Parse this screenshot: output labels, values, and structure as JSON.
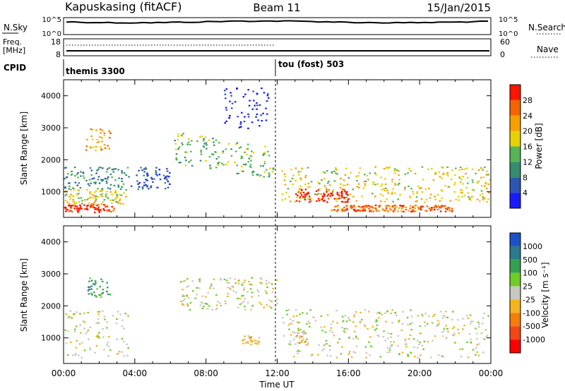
{
  "header": {
    "station": "Kapuskasing (fitACF)",
    "beam": "Beam 11",
    "date": "15/Jan/2015"
  },
  "noise_panel": {
    "left_label": "N.Sky",
    "right_label": "N.Search",
    "left_ticks": [
      "10^5",
      "10^0"
    ],
    "right_ticks": [
      "10^5",
      "10^0"
    ]
  },
  "freq_panel": {
    "left_label_line1": "Freq.",
    "left_label_line2": "[MHz]",
    "right_label": "Nave",
    "left_ticks": [
      "18",
      "8"
    ],
    "right_ticks": [
      "60",
      "0"
    ]
  },
  "cpid_panel": {
    "label": "CPID",
    "segments": [
      {
        "start_hour": 0,
        "text": "themis 3300"
      },
      {
        "start_hour": 12,
        "text": "tou (fost) 503"
      }
    ]
  },
  "power_panel": {
    "ylabel": "Slant Range [km]",
    "yticks": [
      "1000",
      "2000",
      "3000",
      "4000"
    ],
    "ylim": [
      200,
      4500
    ],
    "colorbar_label": "Power [dB]",
    "colorbar_ticks": [
      "4",
      "8",
      "12",
      "16",
      "20",
      "24",
      "28"
    ],
    "colors": [
      "#1a1aff",
      "#2d55b4",
      "#358c6e",
      "#56b456",
      "#e6d200",
      "#f5a000",
      "#f56400",
      "#ff1400"
    ]
  },
  "velocity_panel": {
    "ylabel": "Slant Range [km]",
    "yticks": [
      "1000",
      "2000",
      "3000",
      "4000"
    ],
    "ylim": [
      200,
      4500
    ],
    "colorbar_label": "Velocity [m s⁻¹]",
    "colorbar_ticks": [
      "1000",
      "500",
      "100",
      "25",
      "-25",
      "-100",
      "-500",
      "-1000"
    ],
    "colors": [
      "#1e50c8",
      "#287a8c",
      "#35a050",
      "#6ecd28",
      "#c8c8c0",
      "#f5b41e",
      "#f57d0a",
      "#f54614",
      "#ff0000"
    ]
  },
  "xaxis": {
    "label": "Time UT",
    "ticks": [
      "00:00",
      "04:00",
      "08:00",
      "12:00",
      "16:00",
      "20:00",
      "00:00"
    ],
    "xlim_hours": [
      0,
      24
    ]
  },
  "chart_data": {
    "type": "heatmap",
    "title": "Kapuskasing (fitACF)   Beam 11   15/Jan/2015",
    "xlabel": "Time UT",
    "ylabel": "Slant Range [km]",
    "x_range_hours": [
      0,
      24
    ],
    "y_range_km": [
      200,
      4500
    ],
    "power_features": [
      {
        "t0": 0.0,
        "t1": 2.8,
        "r0": 380,
        "r1": 620,
        "level": 7
      },
      {
        "t0": 0.0,
        "t1": 3.6,
        "r0": 620,
        "r1": 1100,
        "level": 4
      },
      {
        "t0": 0.0,
        "t1": 3.6,
        "r0": 1100,
        "r1": 1800,
        "level": 2
      },
      {
        "t0": 1.2,
        "t1": 2.6,
        "r0": 2300,
        "r1": 3000,
        "level": 5
      },
      {
        "t0": 3.6,
        "t1": 6.0,
        "r0": 1100,
        "r1": 1800,
        "level": 1
      },
      {
        "t0": 6.2,
        "t1": 11.8,
        "r0": 1900,
        "r1": 2900,
        "level": 3
      },
      {
        "t0": 9.0,
        "t1": 11.5,
        "r0": 3000,
        "r1": 4300,
        "level": 0
      },
      {
        "t0": 12.2,
        "t1": 24.0,
        "r0": 700,
        "r1": 1800,
        "level": 4
      },
      {
        "t0": 13.0,
        "t1": 16.0,
        "r0": 700,
        "r1": 1100,
        "level": 7
      },
      {
        "t0": 15.0,
        "t1": 21.8,
        "r0": 400,
        "r1": 600,
        "level": 6
      }
    ],
    "velocity_features": [
      {
        "t0": 0.0,
        "t1": 3.6,
        "r0": 400,
        "r1": 1900,
        "level": 4
      },
      {
        "t0": 1.2,
        "t1": 2.6,
        "r0": 2300,
        "r1": 2900,
        "level": 2
      },
      {
        "t0": 6.5,
        "t1": 12.0,
        "r0": 1900,
        "r1": 2900,
        "level": 4
      },
      {
        "t0": 10.0,
        "t1": 11.0,
        "r0": 800,
        "r1": 1100,
        "level": 5
      },
      {
        "t0": 12.2,
        "t1": 24.0,
        "r0": 400,
        "r1": 1900,
        "level": 4
      },
      {
        "t0": 13.0,
        "t1": 13.8,
        "r0": 800,
        "r1": 1200,
        "level": 5
      }
    ]
  }
}
